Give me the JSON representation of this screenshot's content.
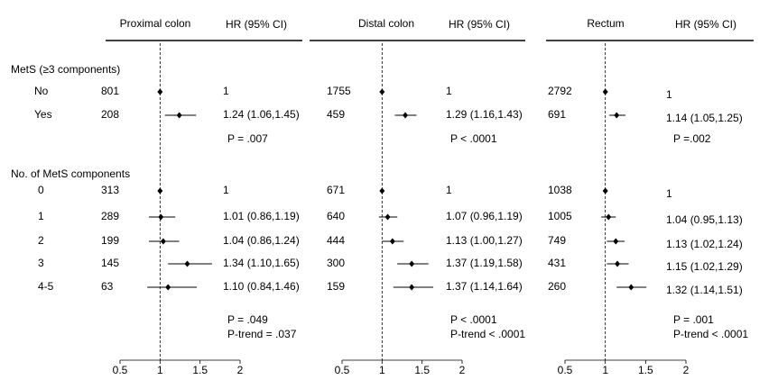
{
  "rows": {
    "groups": [
      "MetS (≥3 components)",
      "No. of MetS components"
    ],
    "categories": [
      "No",
      "Yes",
      "0",
      "1",
      "2",
      "3",
      "4-5"
    ]
  },
  "chart_data": [
    {
      "type": "forest",
      "title": "Proximal colon",
      "ci_header": "HR (95% CI)",
      "counts": [
        801,
        208,
        313,
        289,
        199,
        145,
        63
      ],
      "values": [
        1,
        1.24,
        1,
        1.01,
        1.04,
        1.34,
        1.1
      ],
      "lower": [
        null,
        1.06,
        null,
        0.86,
        0.86,
        1.1,
        0.84
      ],
      "upper": [
        null,
        1.45,
        null,
        1.19,
        1.24,
        1.65,
        1.46
      ],
      "value_labels": [
        "1",
        "1.24 (1.06,1.45)",
        "1",
        "1.01 (0.86,1.19)",
        "1.04 (0.86,1.24)",
        "1.34 (1.10,1.65)",
        "1.10 (0.84,1.46)"
      ],
      "annotations": [
        [
          "P = .007"
        ],
        [
          "P = .049",
          "P-trend = .037"
        ]
      ],
      "reference_line": 1,
      "xlim": [
        0.5,
        2
      ],
      "xticks": [
        0.5,
        1,
        1.5,
        2
      ]
    },
    {
      "type": "forest",
      "title": "Distal colon",
      "ci_header": "HR (95% CI)",
      "counts": [
        1755,
        459,
        671,
        640,
        444,
        300,
        159
      ],
      "values": [
        1,
        1.29,
        1,
        1.07,
        1.13,
        1.37,
        1.37
      ],
      "lower": [
        null,
        1.16,
        null,
        0.96,
        1.0,
        1.19,
        1.14
      ],
      "upper": [
        null,
        1.43,
        null,
        1.19,
        1.27,
        1.58,
        1.64
      ],
      "value_labels": [
        "1",
        "1.29 (1.16,1.43)",
        "1",
        "1.07 (0.96,1.19)",
        "1.13 (1.00,1.27)",
        "1.37 (1.19,1.58)",
        "1.37 (1.14,1.64)"
      ],
      "annotations": [
        [
          "P < .0001"
        ],
        [
          "P < .0001",
          "P-trend < .0001"
        ]
      ],
      "reference_line": 1,
      "xlim": [
        0.5,
        2
      ],
      "xticks": [
        0.5,
        1,
        1.5,
        2
      ]
    },
    {
      "type": "forest",
      "title": "Rectum",
      "ci_header": "HR (95% CI)",
      "counts": [
        2792,
        691,
        1038,
        1005,
        749,
        431,
        260
      ],
      "values": [
        1,
        1.14,
        1,
        1.04,
        1.13,
        1.15,
        1.32
      ],
      "lower": [
        null,
        1.05,
        null,
        0.95,
        1.02,
        1.02,
        1.14
      ],
      "upper": [
        null,
        1.25,
        null,
        1.13,
        1.24,
        1.29,
        1.51
      ],
      "value_labels": [
        "1",
        "1.14 (1.05,1.25)",
        "1",
        "1.04 (0.95,1.13)",
        "1.13 (1.02,1.24)",
        "1.15 (1.02,1.29)",
        "1.32 (1.14,1.51)"
      ],
      "annotations": [
        [
          "P =.002"
        ],
        [
          "P = .001",
          "P-trend < .0001"
        ]
      ],
      "reference_line": 1,
      "xlim": [
        0.5,
        2
      ],
      "xticks": [
        0.5,
        1,
        1.5,
        2
      ]
    }
  ]
}
